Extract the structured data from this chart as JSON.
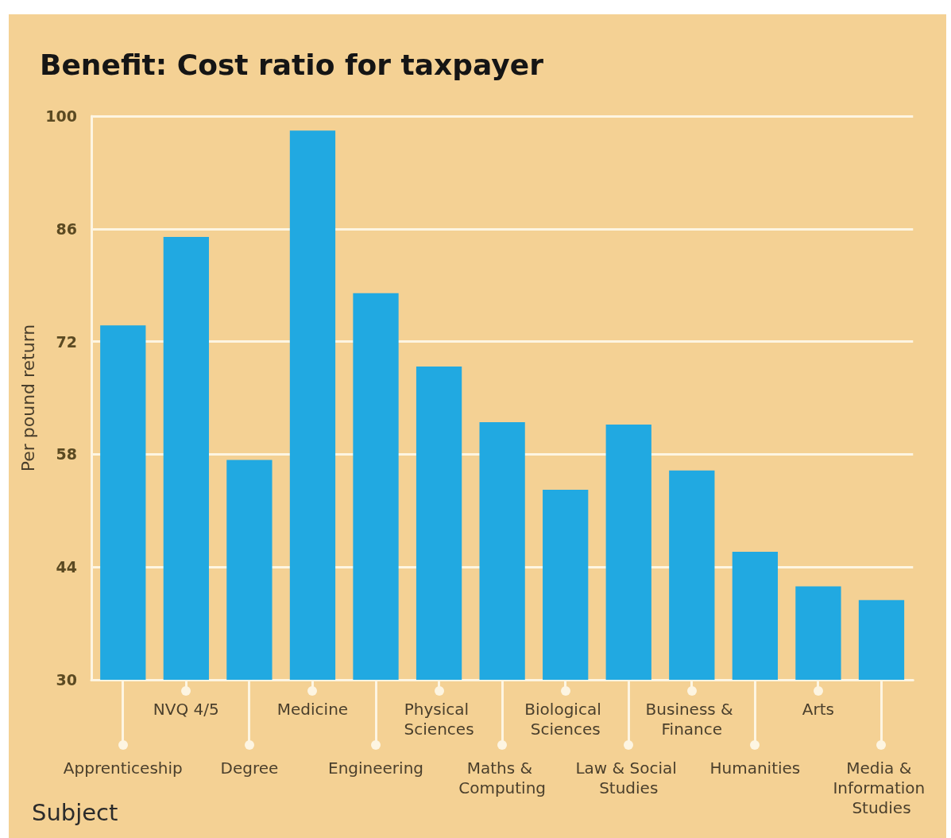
{
  "chart_data": {
    "type": "bar",
    "title": "Benefit: Cost ratio for taxpayer",
    "xlabel": "Subject",
    "ylabel": "Per pound return",
    "categories": [
      "Apprenticeship",
      "NVQ 4/5",
      "Degree",
      "Medicine",
      "Engineering",
      "Physical Sciences",
      "Maths & Computing",
      "Biological Sciences",
      "Law & Social Studies",
      "Business & Finance",
      "Humanities",
      "Arts",
      "Media & Information Studies"
    ],
    "values": [
      74.0,
      85.0,
      57.3,
      98.2,
      78.0,
      68.9,
      62.0,
      53.6,
      61.7,
      56.0,
      45.9,
      41.6,
      39.9
    ],
    "color": "#21a9e1",
    "ylim": [
      30,
      100
    ],
    "yticks": [
      30,
      44,
      58,
      72,
      86,
      100
    ],
    "grid": "y"
  }
}
